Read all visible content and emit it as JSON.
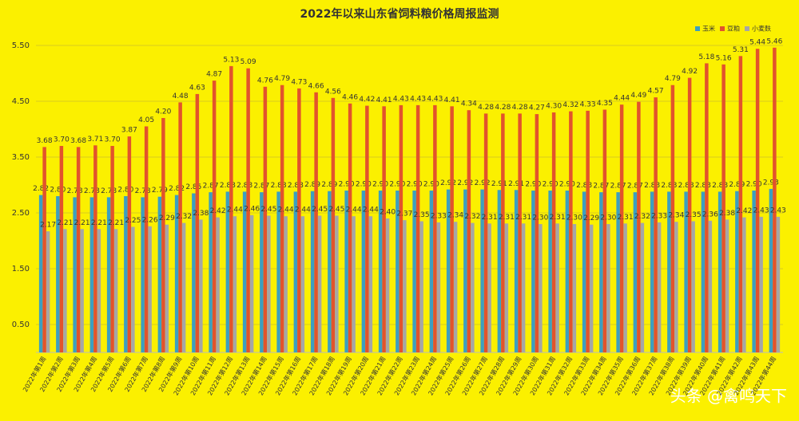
{
  "chart_data": {
    "type": "bar",
    "title": "2022年以来山东省饲料粮价格周报监测",
    "categories": [
      "2022年第1周",
      "2022年第2周",
      "2022年第3周",
      "2022年第4周",
      "2022年第5周",
      "2022年第6周",
      "2022年第7周",
      "2022年第8周",
      "2022年第9周",
      "2022年第10周",
      "2022年第11周",
      "2022年第12周",
      "2022年第13周",
      "2022年第14周",
      "2022年第15周",
      "2022年第16周",
      "2022年第17周",
      "2022年第18周",
      "2022年第19周",
      "2022年第20周",
      "2022年第21周",
      "2022年第22周",
      "2022年第23周",
      "2022年第24周",
      "2022年第25周",
      "2022年第26周",
      "2022年第27周",
      "2022年第28周",
      "2022年第29周",
      "2022年第30周",
      "2022年第31周",
      "2022年第32周",
      "2022年第33周",
      "2022年第34周",
      "2022年第35周",
      "2022年第36周",
      "2022年第37周",
      "2022年第38周",
      "2022年第39周",
      "2022年第40周",
      "2022年第41周",
      "2022年第42周",
      "2022年第43周",
      "2022年第44周"
    ],
    "series": [
      {
        "name": "玉米",
        "color": "#3c9fc0",
        "values": [
          2.82,
          2.8,
          2.78,
          2.78,
          2.78,
          2.8,
          2.78,
          2.79,
          2.82,
          2.85,
          2.87,
          2.88,
          2.88,
          2.87,
          2.88,
          2.88,
          2.89,
          2.89,
          2.9,
          2.9,
          2.9,
          2.9,
          2.9,
          2.9,
          2.92,
          2.92,
          2.92,
          2.91,
          2.91,
          2.9,
          2.9,
          2.9,
          2.88,
          2.87,
          2.87,
          2.87,
          2.88,
          2.88,
          2.88,
          2.88,
          2.88,
          2.89,
          2.9,
          2.93
        ],
        "value_labels": [
          "2.82",
          "2.80",
          "2.78",
          "2.78",
          "2.78",
          "2.80",
          "2.78",
          "2.79",
          "2.82",
          "2.85",
          "2.87",
          "2.88",
          "2.88",
          "2.87",
          "2.88",
          "2.88",
          "2.89",
          "2.89",
          "2.90",
          "2.90",
          "2.90",
          "2.90",
          "2.90",
          "2.90",
          "2.92",
          "2.92",
          "2.92",
          "2.91",
          "2.91",
          "2.90",
          "2.90",
          "2.90",
          "2.88",
          "2.87",
          "2.87",
          "2.87",
          "2.88",
          "2.88",
          "2.88",
          "2.88",
          "2.88",
          "2.89",
          "2.90",
          "2.93"
        ]
      },
      {
        "name": "豆粕",
        "color": "#e2532c",
        "values": [
          3.68,
          3.7,
          3.68,
          3.71,
          3.7,
          3.87,
          4.05,
          4.2,
          4.48,
          4.63,
          4.87,
          5.13,
          5.09,
          4.76,
          4.79,
          4.73,
          4.66,
          4.56,
          4.46,
          4.42,
          4.41,
          4.43,
          4.43,
          4.43,
          4.41,
          4.34,
          4.28,
          4.28,
          4.28,
          4.27,
          4.3,
          4.32,
          4.33,
          4.35,
          4.44,
          4.49,
          4.57,
          4.79,
          4.92,
          5.18,
          5.16,
          5.31,
          5.44,
          5.46
        ],
        "value_labels": [
          "3.68",
          "3.70",
          "3.68",
          "3.71",
          "3.70",
          "3.87",
          "4.05",
          "4.20",
          "4.48",
          "4.63",
          "4.87",
          "5.13",
          "5.09",
          "4.76",
          "4.79",
          "4.73",
          "4.66",
          "4.56",
          "4.46",
          "4.42",
          "4.41",
          "4.43",
          "4.43",
          "4.43",
          "4.41",
          "4.34",
          "4.28",
          "4.28",
          "4.28",
          "4.27",
          "4.30",
          "4.32",
          "4.33",
          "4.35",
          "4.44",
          "4.49",
          "4.57",
          "4.79",
          "4.92",
          "5.18",
          "5.16",
          "5.31",
          "5.44",
          "5.46"
        ]
      },
      {
        "name": "小麦麸",
        "color": "#a6a6a6",
        "values": [
          2.17,
          2.21,
          2.21,
          2.21,
          2.21,
          2.25,
          2.26,
          2.29,
          2.32,
          2.38,
          2.42,
          2.44,
          2.46,
          2.45,
          2.44,
          2.44,
          2.45,
          2.45,
          2.44,
          2.44,
          2.4,
          2.37,
          2.35,
          2.33,
          2.34,
          2.32,
          2.31,
          2.31,
          2.31,
          2.3,
          2.31,
          2.3,
          2.29,
          2.3,
          2.31,
          2.32,
          2.33,
          2.34,
          2.35,
          2.36,
          2.38,
          2.42,
          2.43,
          2.43
        ],
        "value_labels": [
          "2.17",
          "2.21",
          "2.21",
          "2.21",
          "2.21",
          "2.25",
          "2.26",
          "2.29",
          "2.32",
          "2.38",
          "2.42",
          "2.44",
          "2.46",
          "2.45",
          "2.44",
          "2.44",
          "2.45",
          "2.45",
          "2.44",
          "2.44",
          "2.40",
          "2.37",
          "2.35",
          "2.33",
          "2.34",
          "2.32",
          "2.31",
          "2.31",
          "2.31",
          "2.30",
          "2.31",
          "2.30",
          "2.29",
          "2.30",
          "2.31",
          "2.32",
          "2.33",
          "2.34",
          "2.35",
          "2.36",
          "2.38",
          "2.42",
          "2.43",
          "2.43"
        ]
      }
    ],
    "ylim": [
      0,
      5.5
    ],
    "yticks": [
      {
        "value": 0.5,
        "label": "0.50"
      },
      {
        "value": 1.5,
        "label": "1.50"
      },
      {
        "value": 2.5,
        "label": "2.50"
      },
      {
        "value": 3.5,
        "label": "3.50"
      },
      {
        "value": 4.5,
        "label": "4.50"
      },
      {
        "value": 5.5,
        "label": "5.50"
      }
    ],
    "grid": true,
    "legend": "top-right",
    "background": "#fbf000"
  },
  "watermark": "头条 @禽鸣天下"
}
